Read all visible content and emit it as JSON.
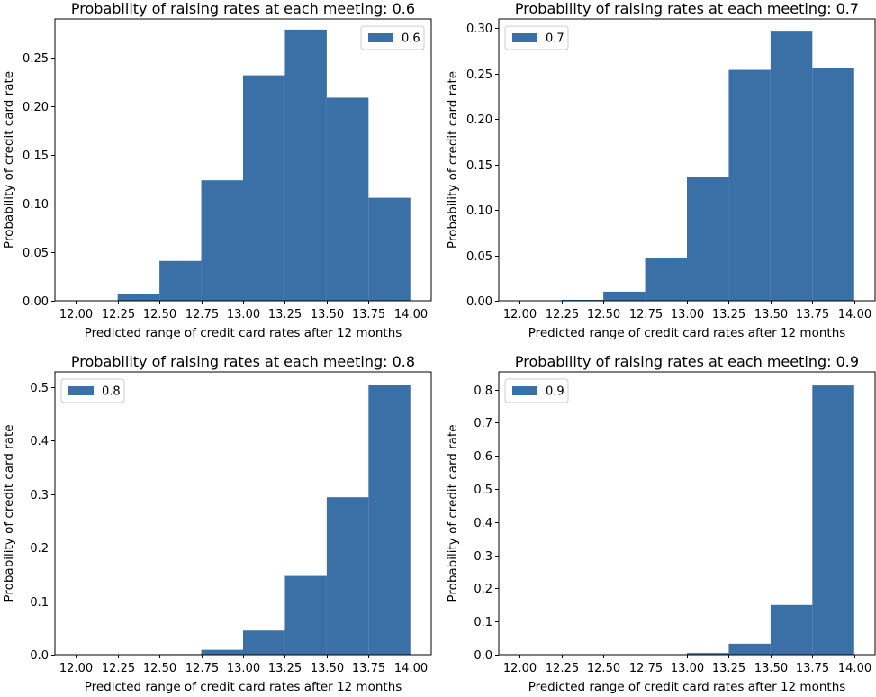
{
  "chart_data": [
    {
      "type": "bar",
      "title": "Probability of raising rates at each meeting: 0.6",
      "xlabel": "Predicted range of credit card rates after 12 months",
      "ylabel": "Probability of credit card rate",
      "bin_edges": [
        12.0,
        12.25,
        12.5,
        12.75,
        13.0,
        13.25,
        13.5,
        13.75,
        14.0
      ],
      "values": [
        0.0,
        0.007,
        0.041,
        0.124,
        0.232,
        0.279,
        0.209,
        0.106
      ],
      "xlim": [
        11.875,
        14.125
      ],
      "ylim": [
        0,
        0.29
      ],
      "xticks": [
        "12.00",
        "12.25",
        "12.50",
        "12.75",
        "13.00",
        "13.25",
        "13.50",
        "13.75",
        "14.00"
      ],
      "yticks": [
        "0.00",
        "0.05",
        "0.10",
        "0.15",
        "0.20",
        "0.25"
      ],
      "ytick_values": [
        0,
        0.05,
        0.1,
        0.15,
        0.2,
        0.25
      ],
      "legend": "0.6",
      "legend_position": "top-right",
      "color": "#3b70a6"
    },
    {
      "type": "bar",
      "title": "Probability of raising rates at each meeting: 0.7",
      "xlabel": "Predicted range of credit card rates after 12 months",
      "ylabel": "Probability of credit card rate",
      "bin_edges": [
        12.0,
        12.25,
        12.5,
        12.75,
        13.0,
        13.25,
        13.5,
        13.75,
        14.0
      ],
      "values": [
        0.0,
        0.001,
        0.01,
        0.047,
        0.136,
        0.254,
        0.297,
        0.256
      ],
      "xlim": [
        11.875,
        14.125
      ],
      "ylim": [
        0,
        0.31
      ],
      "xticks": [
        "12.00",
        "12.25",
        "12.50",
        "12.75",
        "13.00",
        "13.25",
        "13.50",
        "13.75",
        "14.00"
      ],
      "yticks": [
        "0.00",
        "0.05",
        "0.10",
        "0.15",
        "0.20",
        "0.25",
        "0.30"
      ],
      "ytick_values": [
        0,
        0.05,
        0.1,
        0.15,
        0.2,
        0.25,
        0.3
      ],
      "legend": "0.7",
      "legend_position": "top-left",
      "color": "#3b70a6"
    },
    {
      "type": "bar",
      "title": "Probability of raising rates at each meeting: 0.8",
      "xlabel": "Predicted range of credit card rates after 12 months",
      "ylabel": "Probability of credit card rate",
      "bin_edges": [
        12.0,
        12.25,
        12.5,
        12.75,
        13.0,
        13.25,
        13.5,
        13.75,
        14.0
      ],
      "values": [
        0.0,
        0.0,
        0.001,
        0.009,
        0.045,
        0.147,
        0.294,
        0.503
      ],
      "xlim": [
        11.875,
        14.125
      ],
      "ylim": [
        0,
        0.528
      ],
      "xticks": [
        "12.00",
        "12.25",
        "12.50",
        "12.75",
        "13.00",
        "13.25",
        "13.50",
        "13.75",
        "14.00"
      ],
      "yticks": [
        "0.0",
        "0.1",
        "0.2",
        "0.3",
        "0.4",
        "0.5"
      ],
      "ytick_values": [
        0,
        0.1,
        0.2,
        0.3,
        0.4,
        0.5
      ],
      "legend": "0.8",
      "legend_position": "top-left",
      "color": "#3b70a6"
    },
    {
      "type": "bar",
      "title": "Probability of raising rates at each meeting: 0.9",
      "xlabel": "Predicted range of credit card rates after 12 months",
      "ylabel": "Probability of credit card rate",
      "bin_edges": [
        12.0,
        12.25,
        12.5,
        12.75,
        13.0,
        13.25,
        13.5,
        13.75,
        14.0
      ],
      "values": [
        0.0,
        0.0,
        0.0,
        0.0,
        0.005,
        0.033,
        0.15,
        0.812
      ],
      "xlim": [
        11.875,
        14.125
      ],
      "ylim": [
        0,
        0.853
      ],
      "xticks": [
        "12.00",
        "12.25",
        "12.50",
        "12.75",
        "13.00",
        "13.25",
        "13.50",
        "13.75",
        "14.00"
      ],
      "yticks": [
        "0.0",
        "0.1",
        "0.2",
        "0.3",
        "0.4",
        "0.5",
        "0.6",
        "0.7",
        "0.8"
      ],
      "ytick_values": [
        0,
        0.1,
        0.2,
        0.3,
        0.4,
        0.5,
        0.6,
        0.7,
        0.8
      ],
      "legend": "0.9",
      "legend_position": "top-left",
      "color": "#3b70a6"
    }
  ]
}
